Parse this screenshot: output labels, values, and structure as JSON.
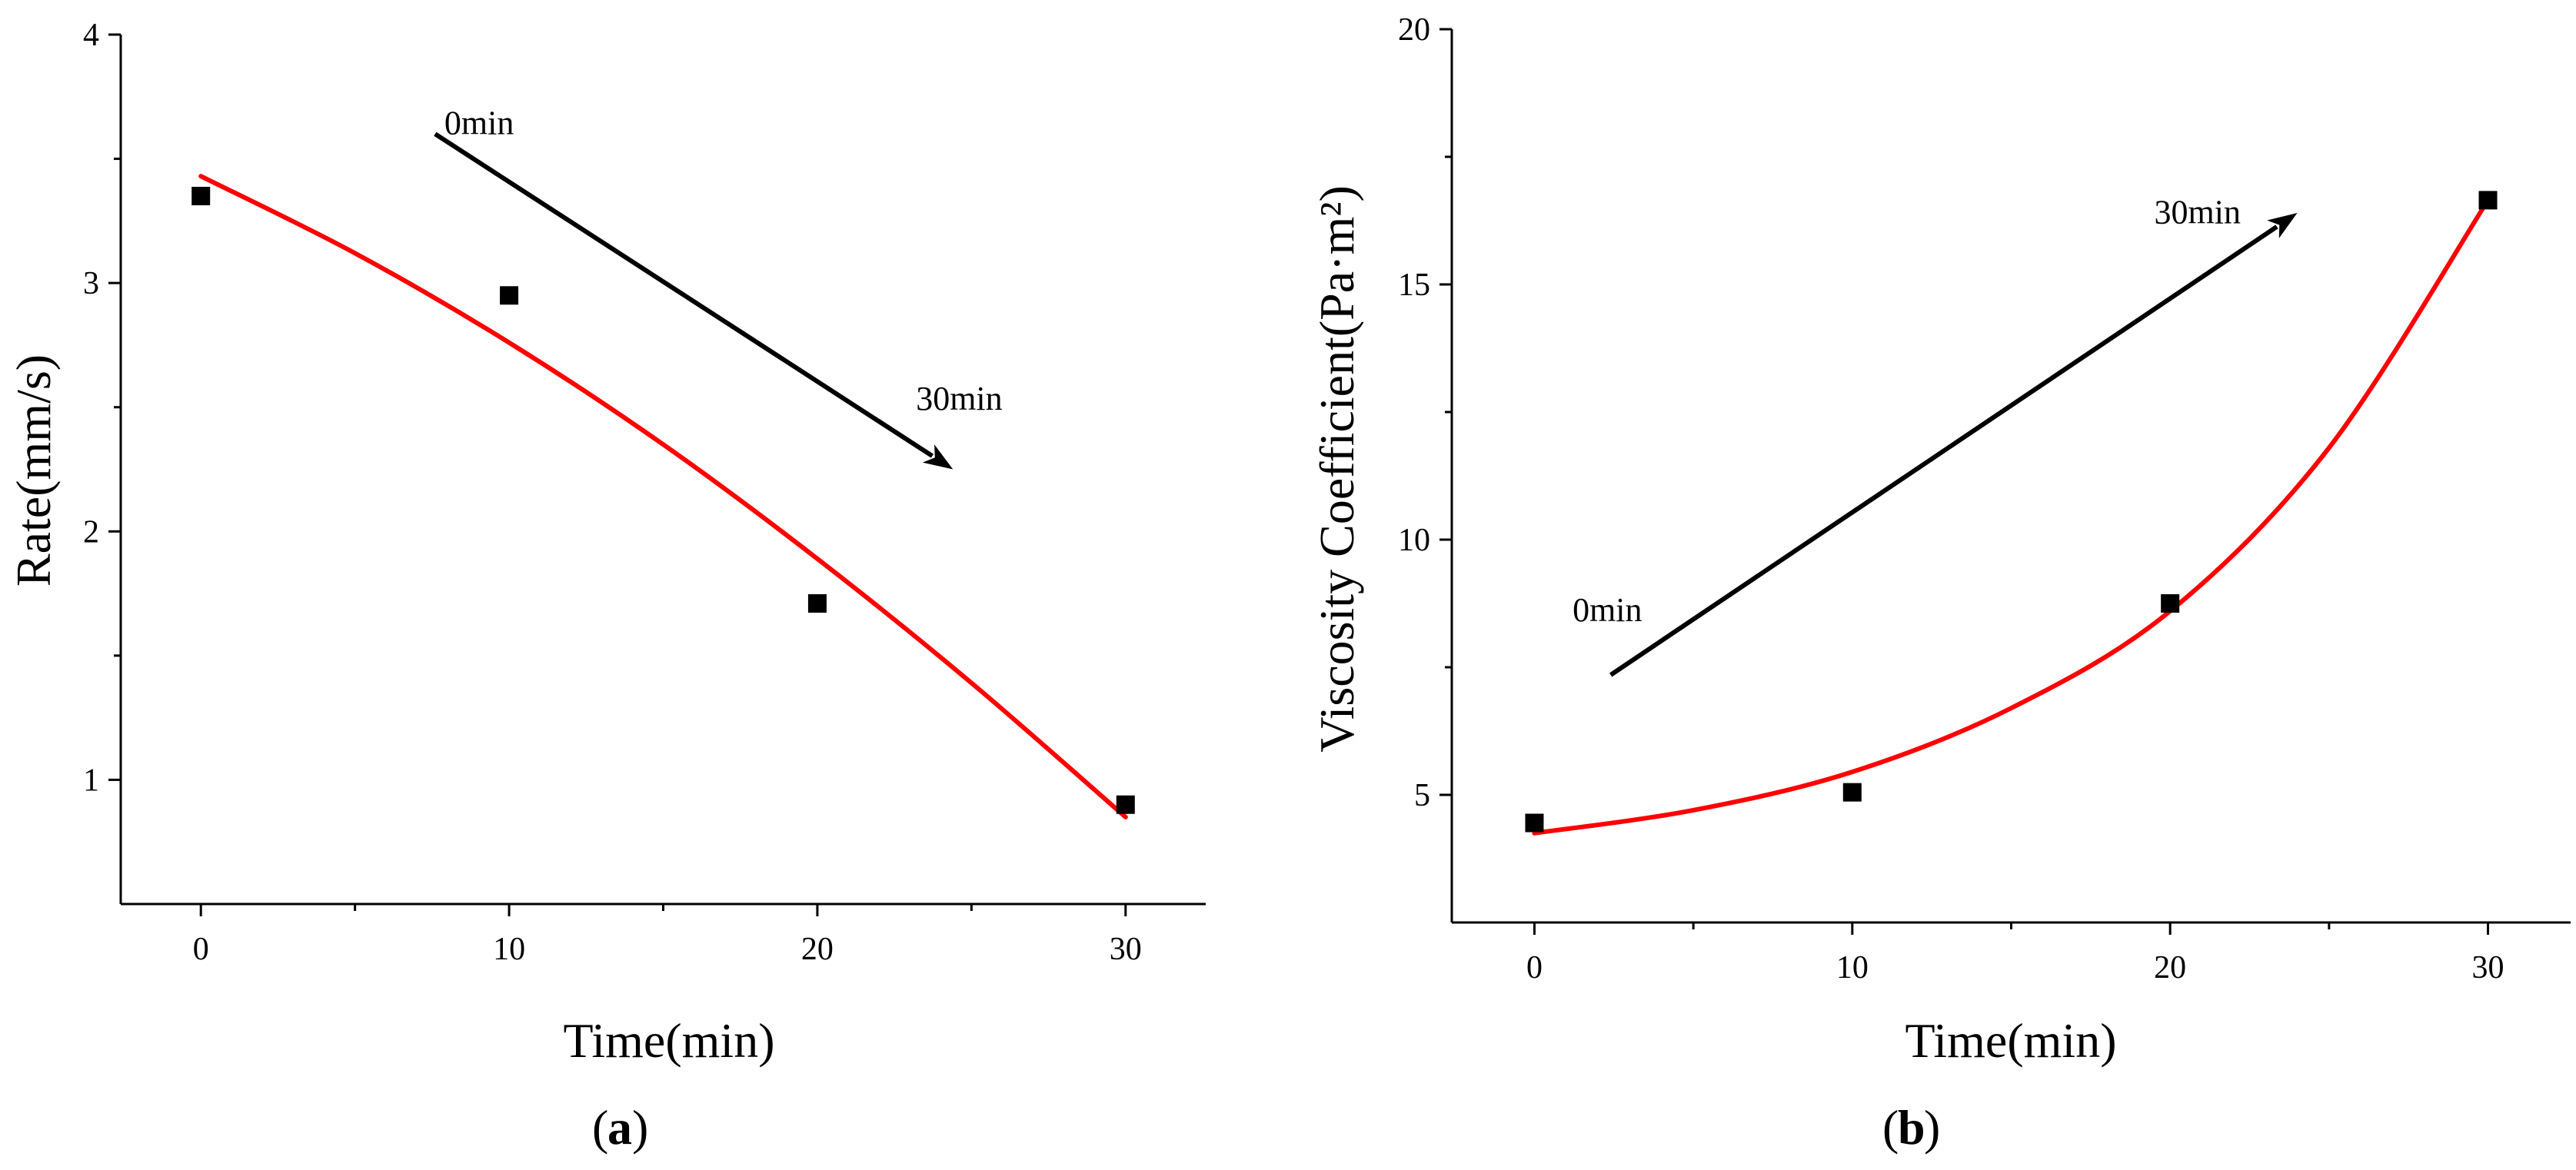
{
  "figure": {
    "panels": [
      "a",
      "b"
    ]
  },
  "colors": {
    "fit_line": "#ff0000",
    "points": "#000000",
    "axes": "#000000"
  },
  "chart_data": [
    {
      "type": "scatter",
      "panel_label": "a",
      "title": "",
      "xlabel": "Time(min)",
      "ylabel": "Rate(mm/s)",
      "xlim": [
        -2.6,
        32.6
      ],
      "ylim": [
        0.5,
        4
      ],
      "xticks": [
        0,
        10,
        20,
        30
      ],
      "yticks": [
        1,
        2,
        3,
        4
      ],
      "xtick_labels": [
        "0",
        "10",
        "20",
        "30"
      ],
      "ytick_labels": [
        "1",
        "2",
        "3",
        "4"
      ],
      "series": [
        {
          "name": "data",
          "x": [
            0,
            10,
            20,
            30
          ],
          "y": [
            3.35,
            2.95,
            1.71,
            0.9
          ]
        },
        {
          "name": "fit",
          "kind": "line",
          "x": [
            0,
            5,
            10,
            15,
            20,
            25,
            30
          ],
          "y": [
            3.43,
            3.12,
            2.76,
            2.35,
            1.89,
            1.39,
            0.85
          ]
        }
      ],
      "annotations": [
        {
          "text": "0min",
          "at": [
            7.9,
            3.6
          ]
        },
        {
          "text": "30min",
          "at": [
            23.2,
            2.49
          ]
        }
      ],
      "arrow": {
        "from": [
          7.6,
          3.6
        ],
        "to": [
          24.4,
          2.25
        ]
      }
    },
    {
      "type": "scatter",
      "panel_label": "b",
      "title": "",
      "xlabel": "Time(min)",
      "ylabel": "Viscosity Coefficient(Pa·m²)",
      "xlim": [
        -2.6,
        32.6
      ],
      "ylim": [
        2.5,
        20
      ],
      "xticks": [
        0,
        10,
        20,
        30
      ],
      "yticks": [
        5,
        10,
        15,
        20
      ],
      "xtick_labels": [
        "0",
        "10",
        "20",
        "30"
      ],
      "ytick_labels": [
        "5",
        "10",
        "15",
        "20"
      ],
      "series": [
        {
          "name": "data",
          "x": [
            0,
            10,
            20,
            30
          ],
          "y": [
            4.45,
            5.05,
            8.75,
            16.65
          ]
        },
        {
          "name": "fit",
          "kind": "line",
          "x": [
            0,
            5,
            10,
            15,
            20,
            25,
            30
          ],
          "y": [
            4.25,
            4.7,
            5.45,
            6.7,
            8.6,
            11.8,
            16.65
          ]
        }
      ],
      "annotations": [
        {
          "text": "0min",
          "at": [
            1.2,
            8.4
          ]
        },
        {
          "text": "30min",
          "at": [
            19.5,
            16.2
          ]
        }
      ],
      "arrow": {
        "from": [
          2.4,
          7.35
        ],
        "to": [
          24.0,
          16.4
        ]
      }
    }
  ]
}
